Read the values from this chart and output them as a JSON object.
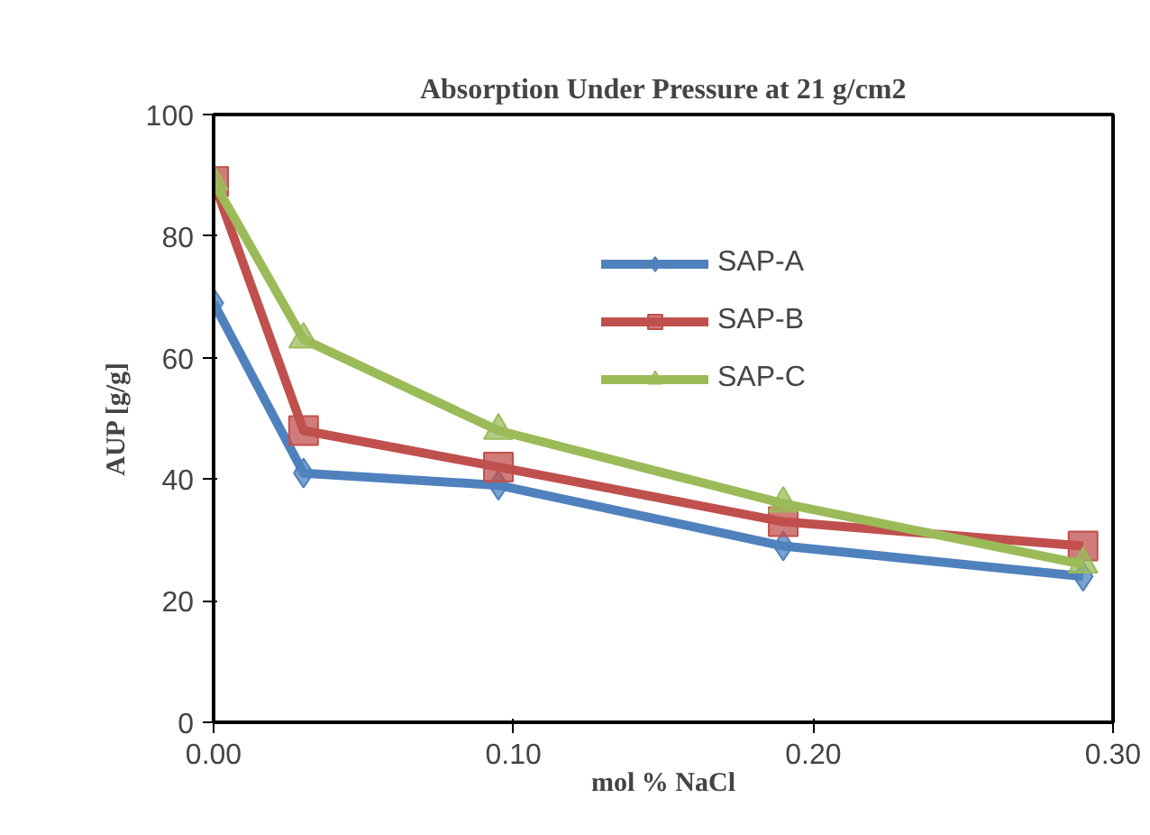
{
  "chart_data": {
    "type": "line",
    "title": "Absorption Under Pressure at 21 g/cm2",
    "xlabel": "mol % NaCl",
    "ylabel": "AUP [g/g]",
    "x": [
      0.0,
      0.03,
      0.095,
      0.19,
      0.29
    ],
    "xlim": [
      0,
      0.3
    ],
    "xticks": [
      {
        "value": 0,
        "label": "0.00"
      },
      {
        "value": 0.1,
        "label": "0.10"
      },
      {
        "value": 0.2,
        "label": "0.20"
      },
      {
        "value": 0.3,
        "label": "0.30"
      }
    ],
    "ylim": [
      0,
      100
    ],
    "yticks": [
      0,
      20,
      40,
      60,
      80,
      100
    ],
    "grid": false,
    "legend": "top right",
    "line_style": "solid",
    "series": [
      {
        "name": "SAP-A",
        "color": "#4f81bd",
        "marker": "diamond",
        "values": [
          69,
          41,
          39,
          29,
          24
        ]
      },
      {
        "name": "SAP-B",
        "color": "#c0504d",
        "marker": "square",
        "values": [
          89,
          48,
          42,
          33,
          29
        ]
      },
      {
        "name": "SAP-C",
        "color": "#9bbb59",
        "marker": "triangle",
        "values": [
          89,
          63,
          48,
          36,
          26
        ]
      }
    ]
  }
}
